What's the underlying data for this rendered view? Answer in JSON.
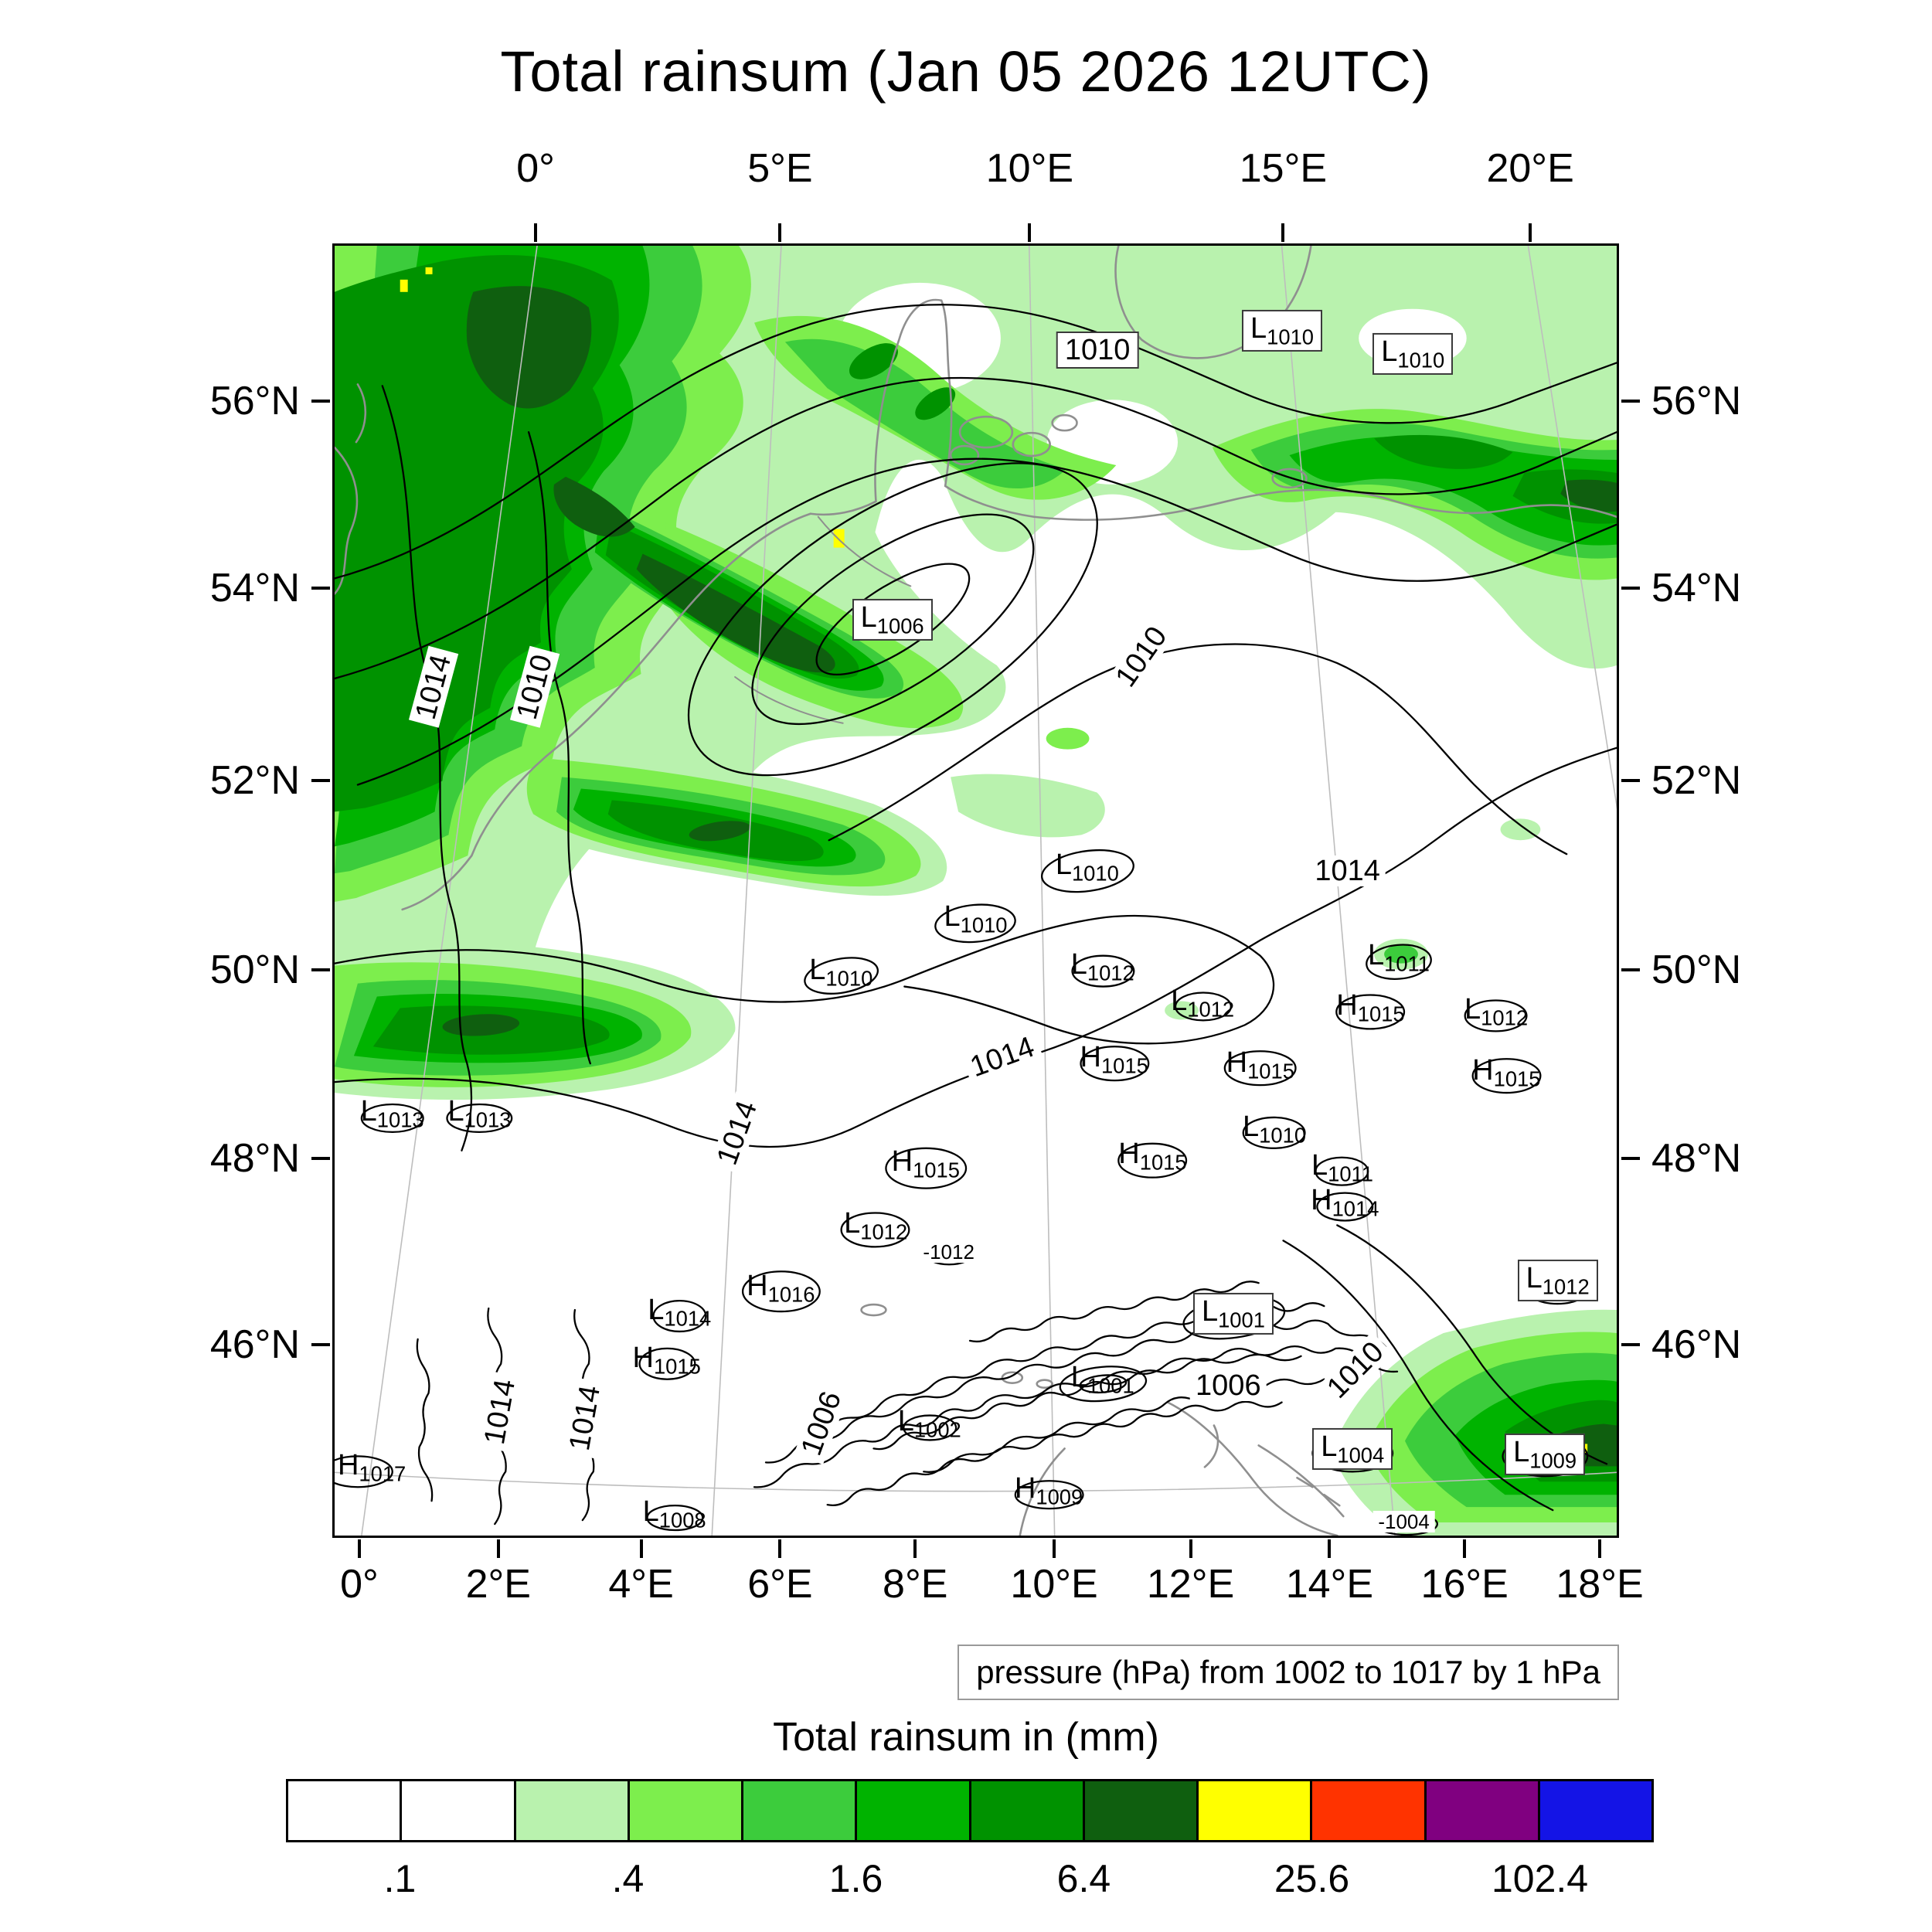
{
  "title": "Total rainsum (Jan 05 2026 12UTC)",
  "caption": "pressure (hPa) from 1002 to 1017 by 1 hPa",
  "chart_data": {
    "type": "heatmap",
    "title": "Total rainsum (Jan 05 2026 12UTC)",
    "valid_time": "Jan 05 2026 12UTC",
    "variable": "Total rainsum in (mm)",
    "overlay": "sea level pressure contours",
    "contour_caption": "pressure (hPa) from 1002 to 1017 by 1 hPa",
    "contour_min_hPa": 1002,
    "contour_max_hPa": 1017,
    "contour_interval_hPa": 1,
    "axes": {
      "top": [
        {
          "label": "0°",
          "f": 0.158
        },
        {
          "label": "5°E",
          "f": 0.348
        },
        {
          "label": "10°E",
          "f": 0.542
        },
        {
          "label": "15°E",
          "f": 0.739
        },
        {
          "label": "20°E",
          "f": 0.931
        }
      ],
      "bottom": [
        {
          "label": "0°",
          "f": 0.021
        },
        {
          "label": "2°E",
          "f": 0.129
        },
        {
          "label": "4°E",
          "f": 0.24
        },
        {
          "label": "6°E",
          "f": 0.348
        },
        {
          "label": "8°E",
          "f": 0.453
        },
        {
          "label": "10°E",
          "f": 0.561
        },
        {
          "label": "12°E",
          "f": 0.667
        },
        {
          "label": "14°E",
          "f": 0.775
        },
        {
          "label": "16°E",
          "f": 0.88
        },
        {
          "label": "18°E",
          "f": 0.985
        }
      ],
      "left": [
        {
          "label": "56°N",
          "f": 0.122
        },
        {
          "label": "54°N",
          "f": 0.266
        },
        {
          "label": "52°N",
          "f": 0.415
        },
        {
          "label": "50°N",
          "f": 0.561
        },
        {
          "label": "48°N",
          "f": 0.707
        },
        {
          "label": "46°N",
          "f": 0.851
        }
      ],
      "right": [
        {
          "label": "56°N",
          "f": 0.122
        },
        {
          "label": "54°N",
          "f": 0.266
        },
        {
          "label": "52°N",
          "f": 0.415
        },
        {
          "label": "50°N",
          "f": 0.561
        },
        {
          "label": "48°N",
          "f": 0.707
        },
        {
          "label": "46°N",
          "f": 0.851
        }
      ]
    },
    "colorbar": {
      "title": "Total rainsum in (mm)",
      "colors": [
        "#ffffff",
        "#ffffff",
        "#b9f2ae",
        "#7dee4d",
        "#3ccc3c",
        "#00b300",
        "#009200",
        "#0f5f0f",
        "#ffff00",
        "#ff3300",
        "#800080",
        "#1414e6"
      ],
      "tick_labels": [
        {
          "text": ".1",
          "f": 0.0833
        },
        {
          "text": ".4",
          "f": 0.25
        },
        {
          "text": "1.6",
          "f": 0.4167
        },
        {
          "text": "6.4",
          "f": 0.5833
        },
        {
          "text": "25.6",
          "f": 0.75
        },
        {
          "text": "102.4",
          "f": 0.9167
        }
      ],
      "boundaries_mm": [
        0.1,
        0.2,
        0.4,
        0.8,
        1.6,
        3.2,
        6.4,
        12.8,
        25.6,
        51.2,
        102.4
      ]
    },
    "pressure_markers": [
      {
        "letter": "",
        "value": "1010",
        "x": 59.5,
        "y": 8.1,
        "boxed": true
      },
      {
        "letter": "L",
        "value": "1010",
        "x": 73.9,
        "y": 6.6,
        "boxed": true
      },
      {
        "letter": "L",
        "value": "1010",
        "x": 84.1,
        "y": 8.4,
        "boxed": true
      },
      {
        "letter": "L",
        "value": "1006",
        "x": 43.5,
        "y": 29.0,
        "boxed": true
      },
      {
        "letter": "",
        "value": "1014",
        "x": 7.7,
        "y": 34.2,
        "rot": -75
      },
      {
        "letter": "",
        "value": "1010",
        "x": 15.6,
        "y": 34.2,
        "rot": -75
      },
      {
        "letter": "",
        "value": "1010",
        "x": 62.9,
        "y": 31.9,
        "rot": -55
      },
      {
        "letter": "L",
        "value": "1010",
        "x": 58.7,
        "y": 48.2
      },
      {
        "letter": "",
        "value": "1014",
        "x": 79.0,
        "y": 48.5
      },
      {
        "letter": "L",
        "value": "1010",
        "x": 50.0,
        "y": 52.2
      },
      {
        "letter": "L",
        "value": "1010",
        "x": 39.5,
        "y": 56.3
      },
      {
        "letter": "L",
        "value": "1012",
        "x": 59.9,
        "y": 55.9
      },
      {
        "letter": "L",
        "value": "1011",
        "x": 83.0,
        "y": 55.2
      },
      {
        "letter": "L",
        "value": "1012",
        "x": 67.7,
        "y": 58.7
      },
      {
        "letter": "H",
        "value": "1015",
        "x": 80.8,
        "y": 59.1
      },
      {
        "letter": "L",
        "value": "1012",
        "x": 90.6,
        "y": 59.4
      },
      {
        "letter": "",
        "value": "1014",
        "x": 52.1,
        "y": 62.9,
        "rot": -20
      },
      {
        "letter": "H",
        "value": "1015",
        "x": 60.8,
        "y": 63.1
      },
      {
        "letter": "H",
        "value": "1015",
        "x": 72.2,
        "y": 63.5
      },
      {
        "letter": "H",
        "value": "1015",
        "x": 91.4,
        "y": 64.1
      },
      {
        "letter": "L",
        "value": "1013",
        "x": 4.5,
        "y": 67.3
      },
      {
        "letter": "L",
        "value": "1013",
        "x": 11.3,
        "y": 67.3
      },
      {
        "letter": "",
        "value": "1014",
        "x": 31.4,
        "y": 68.8,
        "rot": -70
      },
      {
        "letter": "H",
        "value": "1015",
        "x": 46.1,
        "y": 71.2
      },
      {
        "letter": "H",
        "value": "1015",
        "x": 63.8,
        "y": 70.6
      },
      {
        "letter": "L",
        "value": "1010",
        "x": 73.3,
        "y": 68.5
      },
      {
        "letter": "L",
        "value": "1011",
        "x": 78.6,
        "y": 71.5
      },
      {
        "letter": "H",
        "value": "1014",
        "x": 78.8,
        "y": 74.2
      },
      {
        "letter": "L",
        "value": "1012",
        "x": 42.2,
        "y": 76.0
      },
      {
        "letter": "",
        "value": "-1012",
        "x": 47.9,
        "y": 78.0,
        "small": true
      },
      {
        "letter": "H",
        "value": "1016",
        "x": 34.8,
        "y": 80.8
      },
      {
        "letter": "L",
        "value": "1014",
        "x": 26.9,
        "y": 82.7
      },
      {
        "letter": "L",
        "value": "1012",
        "x": 95.4,
        "y": 80.2,
        "boxed": true
      },
      {
        "letter": "H",
        "value": "1015",
        "x": 25.9,
        "y": 86.4
      },
      {
        "letter": "L",
        "value": "1001",
        "x": 70.1,
        "y": 82.8,
        "boxed": true
      },
      {
        "letter": "",
        "value": "1010",
        "x": 79.6,
        "y": 87.2,
        "rot": -45
      },
      {
        "letter": "L",
        "value": "1001",
        "x": 59.9,
        "y": 87.9
      },
      {
        "letter": "",
        "value": "1006",
        "x": 69.7,
        "y": 88.4
      },
      {
        "letter": "",
        "value": "1014",
        "x": 12.9,
        "y": 90.4,
        "rot": -80
      },
      {
        "letter": "",
        "value": "1014",
        "x": 19.5,
        "y": 90.9,
        "rot": -80
      },
      {
        "letter": "L",
        "value": "1002",
        "x": 46.4,
        "y": 91.3
      },
      {
        "letter": "",
        "value": "1006",
        "x": 38.0,
        "y": 91.3,
        "rot": -70
      },
      {
        "letter": "L",
        "value": "1004",
        "x": 79.4,
        "y": 93.3,
        "boxed": true
      },
      {
        "letter": "L",
        "value": "1009",
        "x": 94.4,
        "y": 93.7,
        "boxed": true
      },
      {
        "letter": "H",
        "value": "1017",
        "x": 2.9,
        "y": 94.7
      },
      {
        "letter": "H",
        "value": "1009",
        "x": 55.7,
        "y": 96.5
      },
      {
        "letter": "L",
        "value": "1008",
        "x": 26.5,
        "y": 98.3
      },
      {
        "letter": "",
        "value": "-1004",
        "x": 83.4,
        "y": 98.9,
        "small": true
      }
    ]
  }
}
